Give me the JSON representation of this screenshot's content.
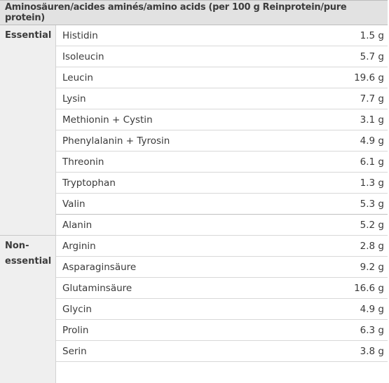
{
  "header": "Aminosäuren/acides aminés/amino acids (per 100 g Reinprotein/pure protein)",
  "groups": [
    {
      "label_line1": "Essential",
      "label_line2": "",
      "rows": [
        {
          "name": "Histidin",
          "value": "1.5 g"
        },
        {
          "name": "Isoleucin",
          "value": "5.7 g"
        },
        {
          "name": "Leucin",
          "value": "19.6 g"
        },
        {
          "name": "Lysin",
          "value": "7.7 g"
        },
        {
          "name": "Methionin + Cystin",
          "value": "3.1 g"
        },
        {
          "name": "Phenylalanin + Tyrosin",
          "value": "4.9 g"
        },
        {
          "name": "Threonin",
          "value": "6.1 g"
        },
        {
          "name": "Tryptophan",
          "value": "1.3 g"
        },
        {
          "name": "Valin",
          "value": "5.3 g"
        }
      ]
    },
    {
      "label_line1": "Non-",
      "label_line2": "essential",
      "rows": [
        {
          "name": "Alanin",
          "value": "5.2 g"
        },
        {
          "name": "Arginin",
          "value": "2.8 g"
        },
        {
          "name": "Asparaginsäure",
          "value": "9.2 g"
        },
        {
          "name": "Glutaminsäure",
          "value": "16.6 g"
        },
        {
          "name": "Glycin",
          "value": "4.9 g"
        },
        {
          "name": "Prolin",
          "value": "6.3 g"
        },
        {
          "name": "Serin",
          "value": "3.8 g"
        }
      ]
    }
  ]
}
